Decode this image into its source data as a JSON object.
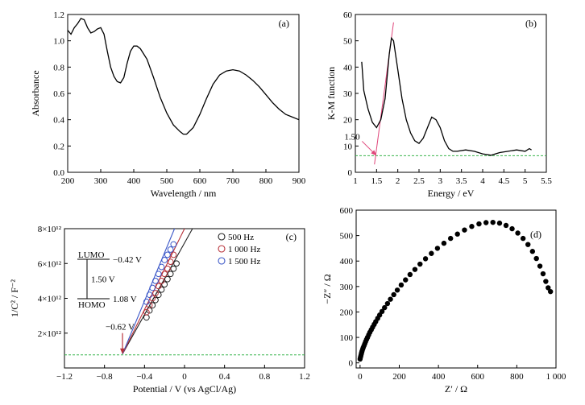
{
  "chart_data": [
    {
      "panel": "(a)",
      "type": "line",
      "xlabel": "Wavelength / nm",
      "ylabel": "Absorbance",
      "xlim": [
        200,
        900
      ],
      "ylim": [
        0.0,
        1.2
      ],
      "xticks": [
        "200",
        "300",
        "400",
        "500",
        "600",
        "700",
        "800",
        "900"
      ],
      "yticks": [
        "0.0",
        "0.2",
        "0.4",
        "0.6",
        "0.8",
        "1.0",
        "1.2"
      ],
      "series": [
        {
          "color": "#000000",
          "x": [
            200,
            210,
            220,
            230,
            240,
            250,
            260,
            270,
            280,
            290,
            300,
            310,
            320,
            330,
            340,
            350,
            360,
            370,
            380,
            390,
            400,
            410,
            420,
            440,
            460,
            480,
            500,
            520,
            540,
            550,
            560,
            580,
            600,
            620,
            640,
            660,
            680,
            700,
            720,
            740,
            760,
            780,
            800,
            820,
            840,
            860,
            880,
            900
          ],
          "y": [
            1.08,
            1.05,
            1.1,
            1.13,
            1.17,
            1.16,
            1.1,
            1.06,
            1.07,
            1.09,
            1.1,
            1.05,
            0.92,
            0.8,
            0.73,
            0.69,
            0.68,
            0.72,
            0.83,
            0.92,
            0.96,
            0.96,
            0.94,
            0.86,
            0.72,
            0.57,
            0.45,
            0.36,
            0.31,
            0.29,
            0.29,
            0.34,
            0.44,
            0.56,
            0.67,
            0.74,
            0.77,
            0.78,
            0.77,
            0.74,
            0.7,
            0.65,
            0.59,
            0.53,
            0.48,
            0.44,
            0.42,
            0.4
          ]
        }
      ]
    },
    {
      "panel": "(b)",
      "type": "line",
      "xlabel": "Energy / eV",
      "ylabel": "K-M function",
      "xlim": [
        1.0,
        5.5
      ],
      "ylim": [
        0,
        60
      ],
      "xticks": [
        "1",
        "1.5",
        "2",
        "2.5",
        "3",
        "3.5",
        "4",
        "4.5",
        "5",
        "5.5"
      ],
      "yticks": [
        "0",
        "10",
        "20",
        "30",
        "40",
        "50",
        "60"
      ],
      "annotation": "1.50",
      "series": [
        {
          "color": "#000000",
          "x": [
            1.15,
            1.2,
            1.3,
            1.4,
            1.5,
            1.6,
            1.7,
            1.8,
            1.85,
            1.9,
            2.0,
            2.1,
            2.2,
            2.3,
            2.4,
            2.5,
            2.6,
            2.7,
            2.8,
            2.9,
            3.0,
            3.1,
            3.2,
            3.3,
            3.4,
            3.6,
            3.8,
            4.0,
            4.2,
            4.4,
            4.6,
            4.8,
            5.0,
            5.1,
            5.15
          ],
          "y": [
            42,
            31,
            24,
            19,
            17,
            20,
            28,
            45,
            51,
            50,
            39,
            28,
            20,
            15,
            12,
            11,
            13,
            17,
            21,
            20,
            17,
            12,
            9,
            8,
            8,
            8.5,
            8,
            7,
            6.5,
            7.5,
            8,
            8.5,
            8,
            9,
            8.5
          ]
        },
        {
          "color": "#e0457a",
          "x": [
            1.45,
            1.9
          ],
          "y": [
            3,
            57
          ]
        },
        {
          "color": "#37b34a",
          "x": [
            1.0,
            5.5
          ],
          "y": [
            6.3,
            6.3
          ]
        }
      ]
    },
    {
      "panel": "(c)",
      "type": "scatter",
      "xlabel": "Potential / V (vs AgCl/Ag)",
      "ylabel": "1/C² / F⁻²",
      "xlim": [
        -1.2,
        1.2
      ],
      "ylim": [
        0,
        8000000000000.0
      ],
      "xticks": [
        "−1.2",
        "−0.8",
        "−0.4",
        "0",
        "0.4",
        "0.8",
        "1.2"
      ],
      "yticks": [
        "2×10¹²",
        "4×10¹²",
        "6×10¹²",
        "8×10¹²"
      ],
      "annotations": {
        "arrow_label": "−0.62 V",
        "lumo": "LUMO",
        "lumo_value": "−0.42 V",
        "gap": "1.50 V",
        "homo": "HOMO",
        "homo_value": "1.08 V"
      },
      "legend_position": "top-right",
      "series": [
        {
          "name": "500 Hz",
          "color": "#222222",
          "x": [
            -0.38,
            -0.35,
            -0.32,
            -0.29,
            -0.26,
            -0.23,
            -0.2,
            -0.17,
            -0.14,
            -0.11,
            -0.08
          ],
          "y": [
            2900000000000.0,
            3300000000000.0,
            3600000000000.0,
            3900000000000.0,
            4200000000000.0,
            4500000000000.0,
            4800000000000.0,
            5100000000000.0,
            5400000000000.0,
            5700000000000.0,
            6000000000000.0
          ]
        },
        {
          "name": "1 000 Hz",
          "color": "#b8323a",
          "x": [
            -0.38,
            -0.35,
            -0.32,
            -0.29,
            -0.26,
            -0.23,
            -0.2,
            -0.17,
            -0.14,
            -0.11
          ],
          "y": [
            3200000000000.0,
            3600000000000.0,
            4000000000000.0,
            4300000000000.0,
            4700000000000.0,
            5000000000000.0,
            5400000000000.0,
            5700000000000.0,
            6100000000000.0,
            6500000000000.0
          ]
        },
        {
          "name": "1 500 Hz",
          "color": "#3b57c8",
          "x": [
            -0.38,
            -0.35,
            -0.32,
            -0.29,
            -0.26,
            -0.23,
            -0.2,
            -0.17,
            -0.14,
            -0.11
          ],
          "y": [
            3800000000000.0,
            4200000000000.0,
            4600000000000.0,
            5000000000000.0,
            5400000000000.0,
            5800000000000.0,
            6200000000000.0,
            6500000000000.0,
            6800000000000.0,
            7100000000000.0
          ]
        }
      ],
      "fit_lines": [
        {
          "color": "#222222",
          "x": [
            -0.62,
            0.08
          ],
          "y": [
            800000000000.0,
            8000000000000.0
          ]
        },
        {
          "color": "#b8323a",
          "x": [
            -0.62,
            0.0
          ],
          "y": [
            800000000000.0,
            8000000000000.0
          ]
        },
        {
          "color": "#3b57c8",
          "x": [
            -0.62,
            -0.1
          ],
          "y": [
            800000000000.0,
            8000000000000.0
          ]
        }
      ],
      "baseline": {
        "color": "#37b34a",
        "y": 750000000000.0
      }
    },
    {
      "panel": "(d)",
      "type": "scatter",
      "xlabel": "Z′ / Ω",
      "ylabel": "−Z″ / Ω",
      "xlim": [
        -20,
        1000
      ],
      "ylim": [
        -20,
        600
      ],
      "xticks": [
        "0",
        "200",
        "400",
        "600",
        "800",
        "1 000"
      ],
      "yticks": [
        "0",
        "100",
        "200",
        "300",
        "400",
        "500",
        "600"
      ],
      "series": [
        {
          "color": "#000000",
          "x": [
            0,
            2,
            4,
            6,
            8,
            10,
            13,
            16,
            20,
            24,
            28,
            33,
            38,
            44,
            50,
            57,
            64,
            72,
            80,
            90,
            100,
            112,
            125,
            140,
            155,
            172,
            190,
            210,
            232,
            255,
            280,
            306,
            334,
            364,
            395,
            428,
            462,
            497,
            533,
            570,
            607,
            643,
            678,
            712,
            745,
            776,
            805,
            832,
            857,
            880,
            900,
            918,
            934,
            948,
            960,
            972
          ],
          "y": [
            15,
            22,
            28,
            34,
            40,
            46,
            53,
            60,
            67,
            75,
            83,
            92,
            100,
            110,
            120,
            130,
            140,
            151,
            162,
            175,
            188,
            202,
            217,
            233,
            250,
            268,
            286,
            306,
            326,
            347,
            367,
            388,
            409,
            430,
            450,
            470,
            489,
            506,
            522,
            536,
            546,
            551,
            552,
            549,
            540,
            527,
            510,
            489,
            465,
            438,
            410,
            380,
            350,
            320,
            295,
            280
          ]
        }
      ]
    }
  ]
}
